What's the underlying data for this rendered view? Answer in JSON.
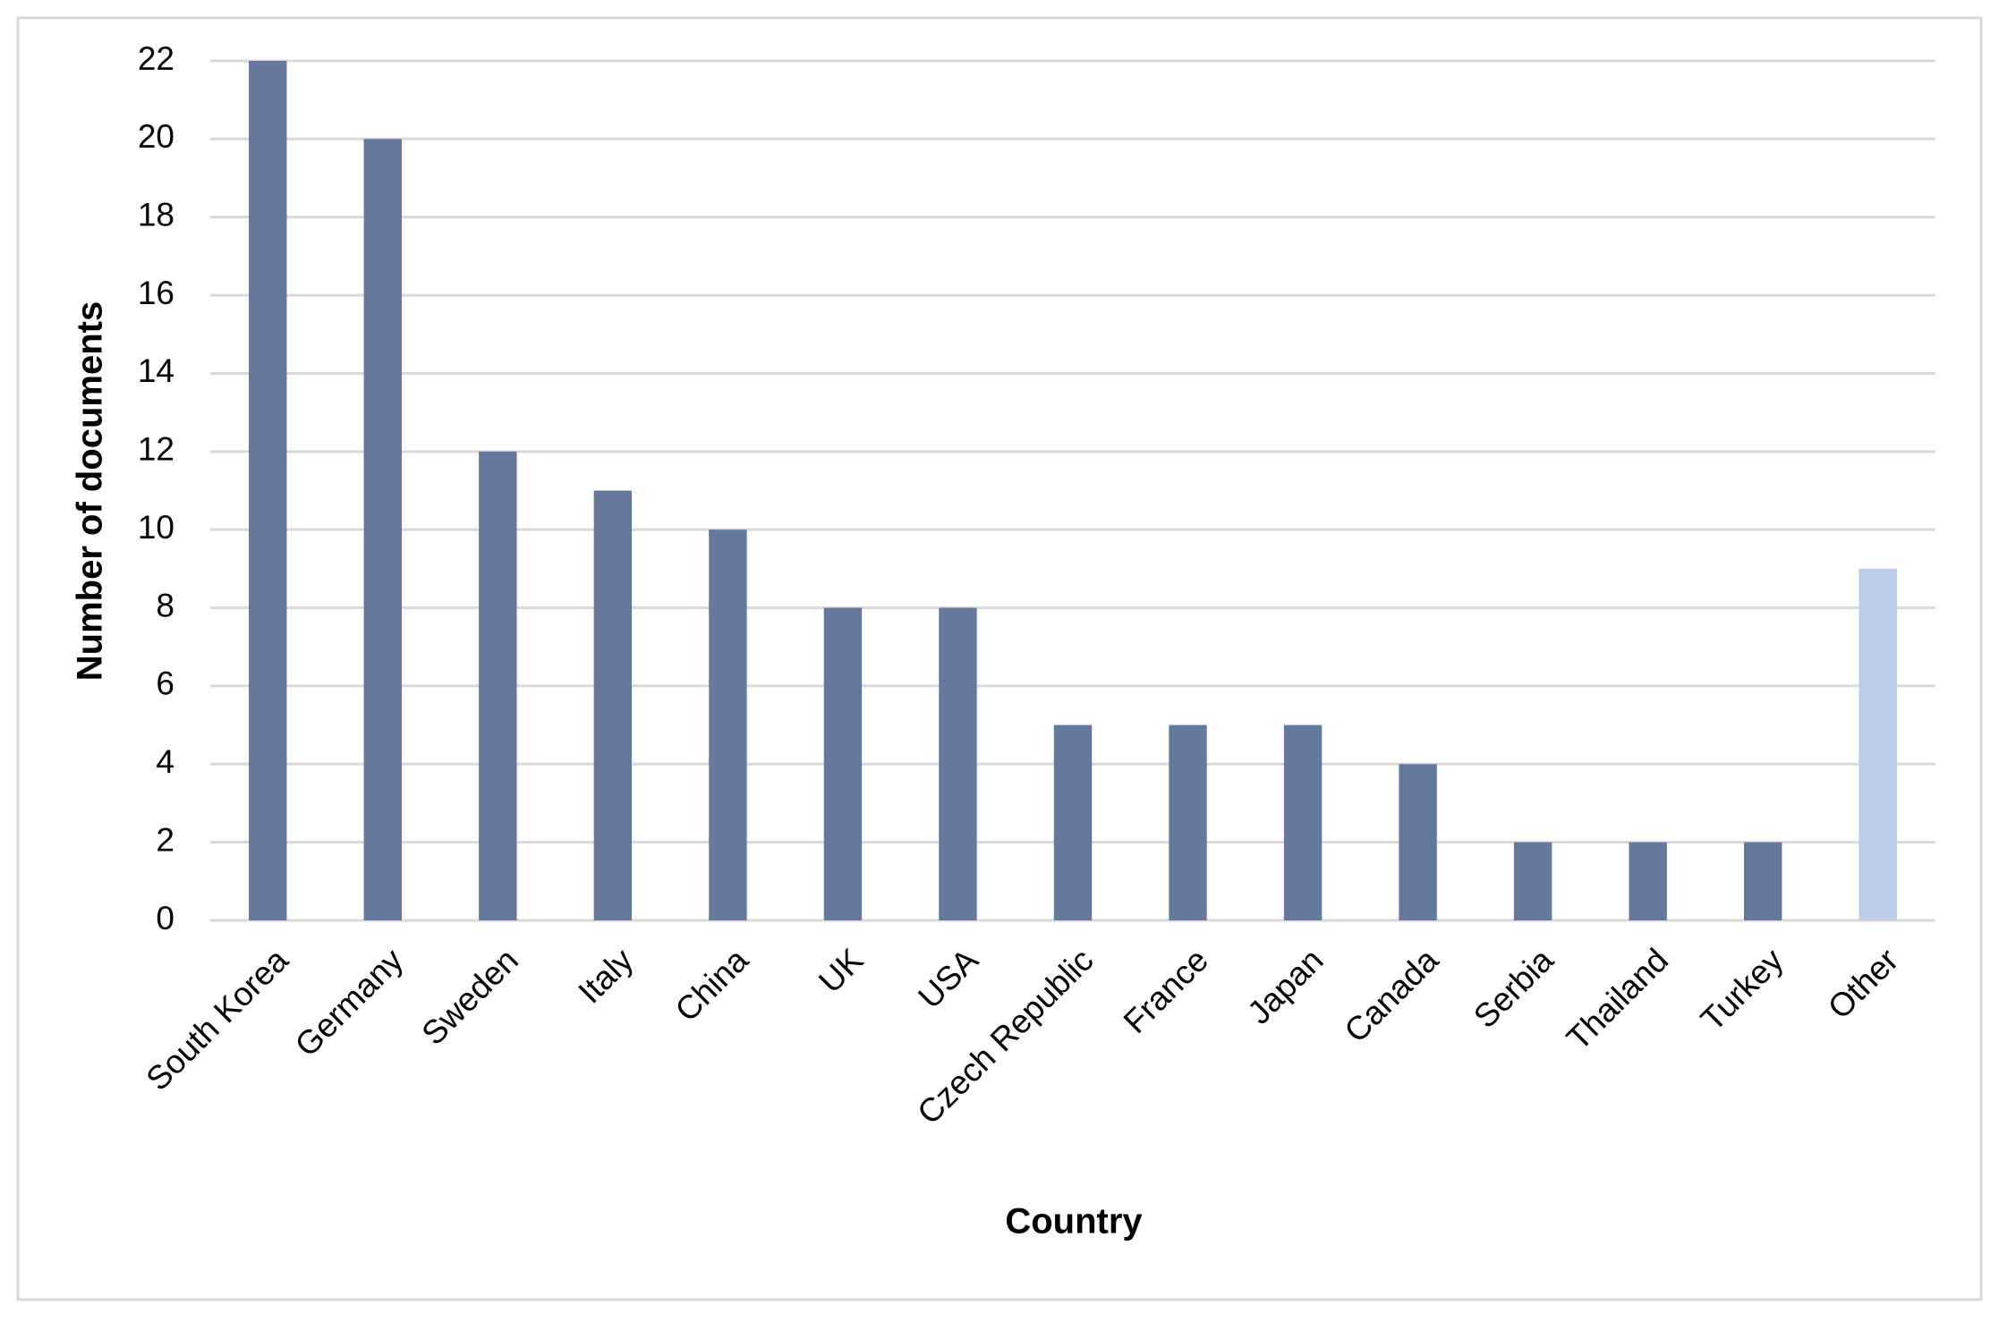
{
  "chart_data": {
    "type": "bar",
    "x_label": "Country",
    "y_label": "Number of documents",
    "categories": [
      "South Korea",
      "Germany",
      "Sweden",
      "Italy",
      "China",
      "UK",
      "USA",
      "Czech Republic",
      "France",
      "Japan",
      "Canada",
      "Serbia",
      "Thailand",
      "Turkey",
      "Other"
    ],
    "values": [
      22,
      20,
      12,
      11,
      10,
      8,
      8,
      5,
      5,
      5,
      4,
      2,
      2,
      2,
      9
    ],
    "colors": [
      "#67789f",
      "#67789f",
      "#67789f",
      "#67789f",
      "#67789f",
      "#67789f",
      "#67789f",
      "#67789f",
      "#67789f",
      "#67789f",
      "#67789f",
      "#67789f",
      "#67789f",
      "#67789f",
      "#bccbe9"
    ],
    "ylim": [
      0,
      22
    ],
    "yticks": [
      0,
      2,
      4,
      6,
      8,
      10,
      12,
      14,
      16,
      18,
      20,
      22
    ],
    "grid": true
  }
}
